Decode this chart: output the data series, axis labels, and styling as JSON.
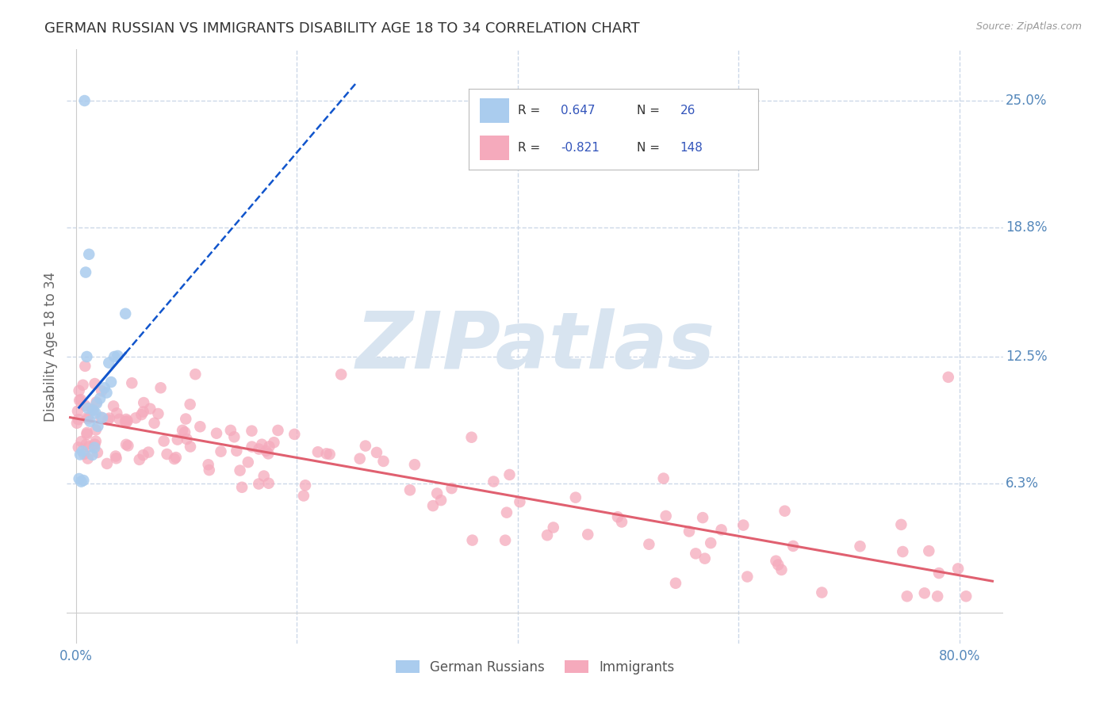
{
  "title": "GERMAN RUSSIAN VS IMMIGRANTS DISABILITY AGE 18 TO 34 CORRELATION CHART",
  "source": "Source: ZipAtlas.com",
  "ylabel": "Disability Age 18 to 34",
  "ytick_vals": [
    0.063,
    0.125,
    0.188,
    0.25
  ],
  "ytick_labels": [
    "6.3%",
    "12.5%",
    "18.8%",
    "25.0%"
  ],
  "xtick_vals": [
    0.0,
    0.2,
    0.4,
    0.6,
    0.8
  ],
  "xlim": [
    -0.008,
    0.84
  ],
  "ylim": [
    -0.015,
    0.275
  ],
  "blue_scatter_color": "#aaccee",
  "pink_scatter_color": "#f5aabc",
  "blue_line_color": "#1155cc",
  "pink_line_color": "#e06070",
  "legend_text_color": "#3355bb",
  "axis_label_color": "#5588bb",
  "grid_color": "#ccd8e8",
  "background_color": "#ffffff",
  "title_color": "#333333",
  "source_color": "#999999",
  "watermark_color": "#d8e4f0",
  "legend_r1": "R =  0.647",
  "legend_n1": "N =  26",
  "legend_r2": "R = -0.821",
  "legend_n2": "N = 148",
  "legend_label1": "German Russians",
  "legend_label2": "Immigrants"
}
